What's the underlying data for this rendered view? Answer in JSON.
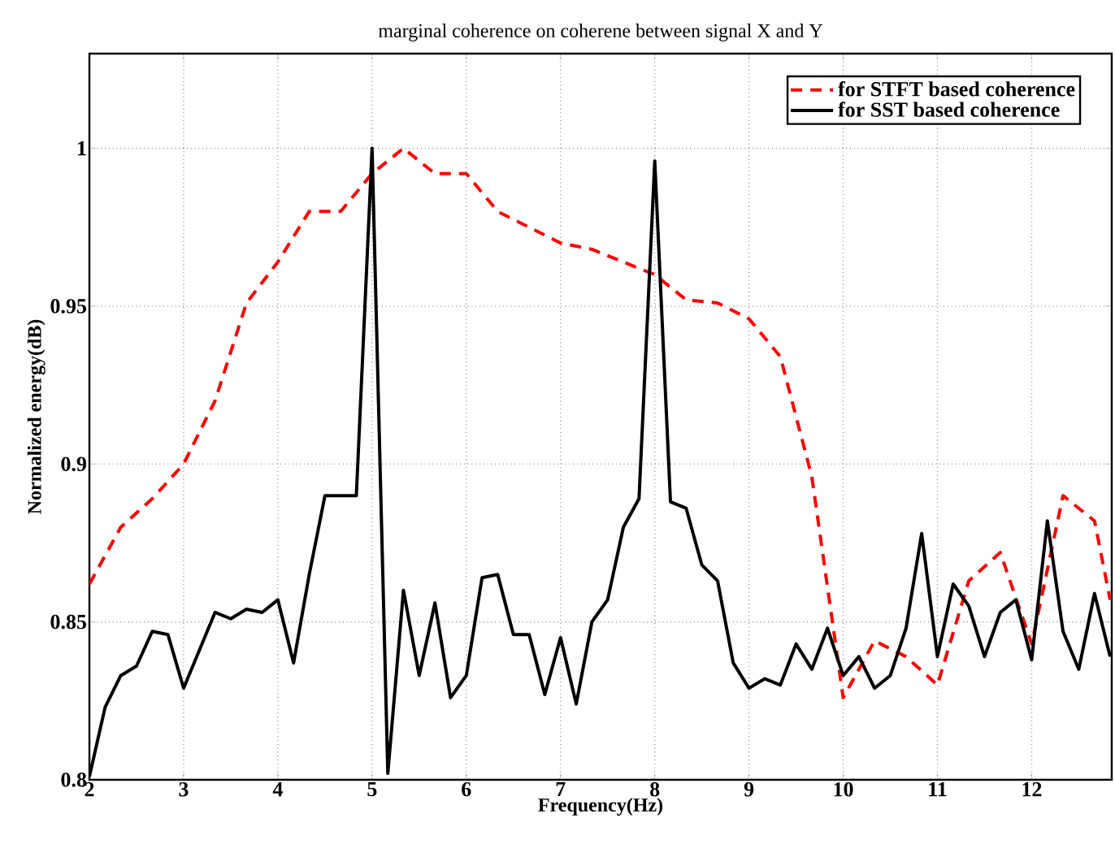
{
  "chart_data": {
    "type": "line",
    "title": "marginal coherence on coherene between signal X and Y",
    "xlabel": "Frequency(Hz)",
    "ylabel": "Normalized energy(dB)",
    "xlim": [
      2,
      12.85
    ],
    "ylim": [
      0.8,
      1.03
    ],
    "xticks": [
      2,
      3,
      4,
      5,
      6,
      7,
      8,
      9,
      10,
      11,
      12
    ],
    "yticks": [
      0.8,
      0.85,
      0.9,
      0.95,
      1
    ],
    "grid": true,
    "legend": "top right",
    "series": [
      {
        "name": "for STFT based coherence",
        "color": "#ff0000",
        "line_style": "dashed",
        "x": [
          2,
          2.333,
          2.667,
          3,
          3.333,
          3.667,
          4,
          4.333,
          4.667,
          5,
          5.333,
          5.667,
          6,
          6.333,
          6.667,
          7,
          7.333,
          7.667,
          8,
          8.333,
          8.667,
          9,
          9.333,
          9.667,
          10,
          10.333,
          10.667,
          11,
          11.333,
          11.667,
          12,
          12.333,
          12.667,
          12.833
        ],
        "values": [
          0.862,
          0.88,
          0.889,
          0.9,
          0.92,
          0.951,
          0.964,
          0.98,
          0.98,
          0.992,
          1.0,
          0.992,
          0.992,
          0.98,
          0.975,
          0.97,
          0.968,
          0.964,
          0.96,
          0.952,
          0.951,
          0.946,
          0.934,
          0.896,
          0.826,
          0.844,
          0.839,
          0.83,
          0.863,
          0.872,
          0.843,
          0.89,
          0.882,
          0.857
        ]
      },
      {
        "name": "for SST based coherence",
        "color": "#000000",
        "line_style": "solid",
        "x": [
          2,
          2.167,
          2.333,
          2.5,
          2.667,
          2.833,
          3,
          3.167,
          3.333,
          3.5,
          3.667,
          3.833,
          4,
          4.167,
          4.333,
          4.5,
          4.667,
          4.833,
          5,
          5.167,
          5.333,
          5.5,
          5.667,
          5.833,
          6,
          6.167,
          6.333,
          6.5,
          6.667,
          6.833,
          7,
          7.167,
          7.333,
          7.5,
          7.667,
          7.833,
          8,
          8.167,
          8.333,
          8.5,
          8.667,
          8.833,
          9,
          9.167,
          9.333,
          9.5,
          9.667,
          9.833,
          10,
          10.167,
          10.333,
          10.5,
          10.667,
          10.833,
          11,
          11.167,
          11.333,
          11.5,
          11.667,
          11.833,
          12,
          12.167,
          12.333,
          12.5,
          12.667,
          12.833
        ],
        "values": [
          0.801,
          0.823,
          0.833,
          0.836,
          0.847,
          0.846,
          0.829,
          0.841,
          0.853,
          0.851,
          0.854,
          0.853,
          0.857,
          0.837,
          0.865,
          0.89,
          0.89,
          0.89,
          1.0,
          0.802,
          0.86,
          0.833,
          0.856,
          0.826,
          0.833,
          0.864,
          0.865,
          0.846,
          0.846,
          0.827,
          0.845,
          0.824,
          0.85,
          0.857,
          0.88,
          0.889,
          0.996,
          0.888,
          0.886,
          0.868,
          0.863,
          0.837,
          0.829,
          0.832,
          0.83,
          0.843,
          0.835,
          0.848,
          0.833,
          0.839,
          0.829,
          0.833,
          0.848,
          0.878,
          0.839,
          0.862,
          0.855,
          0.839,
          0.853,
          0.857,
          0.838,
          0.882,
          0.847,
          0.835,
          0.859,
          0.839
        ]
      }
    ]
  }
}
